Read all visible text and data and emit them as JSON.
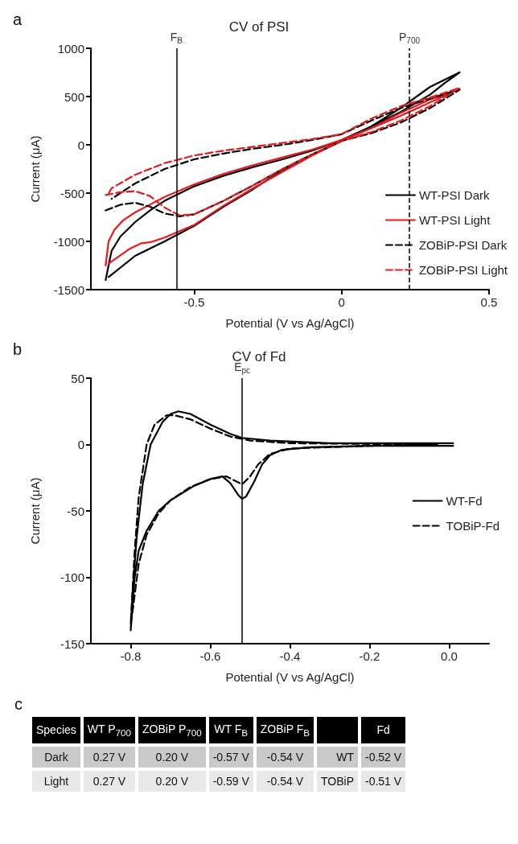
{
  "chart_data": [
    {
      "type": "line",
      "title": "CV of PSI",
      "xlabel": "Potential (V vs Ag/AgCl)",
      "ylabel": "Current (μA)",
      "annotations": [
        "a"
      ],
      "xlim": [
        -0.85,
        0.5
      ],
      "xticks": [
        -0.5,
        0,
        0.5
      ],
      "ylim": [
        -1500,
        1000
      ],
      "yticks": [
        -1500,
        -1000,
        -500,
        0,
        500,
        1000
      ],
      "grid": false,
      "legend": "bottom right",
      "ref_lines": [
        {
          "axis": "x",
          "value": -0.56,
          "label": "F$_{B}$",
          "color": "#000000"
        },
        {
          "axis": "x",
          "value": 0.23,
          "label": "P$_{700}$",
          "color": "#000000",
          "line_style": "dashed"
        }
      ],
      "series": [
        {
          "name": "WT-PSI Dark",
          "color": "#000000",
          "x": [
            -0.8,
            -0.79,
            -0.78,
            -0.75,
            -0.7,
            -0.65,
            -0.6,
            -0.5,
            -0.4,
            -0.3,
            -0.2,
            -0.1,
            0,
            0.1,
            0.2,
            0.3,
            0.4,
            0.35,
            0.3,
            0.2,
            0.1,
            0,
            -0.1,
            -0.2,
            -0.3,
            -0.4,
            -0.5,
            -0.6,
            -0.7,
            -0.79
          ],
          "values": [
            -1400,
            -1250,
            -1100,
            -950,
            -800,
            -680,
            -580,
            -430,
            -320,
            -230,
            -150,
            -60,
            50,
            190,
            380,
            600,
            750,
            640,
            520,
            340,
            190,
            40,
            -100,
            -260,
            -460,
            -640,
            -840,
            -1000,
            -1150,
            -1370
          ]
        },
        {
          "name": "WT-PSI Light",
          "color": "#e8191c",
          "x": [
            -0.8,
            -0.79,
            -0.77,
            -0.74,
            -0.7,
            -0.65,
            -0.6,
            -0.5,
            -0.4,
            -0.3,
            -0.2,
            -0.1,
            0,
            0.1,
            0.2,
            0.3,
            0.4,
            0.3,
            0.2,
            0.1,
            0,
            -0.1,
            -0.2,
            -0.3,
            -0.4,
            -0.5,
            -0.6,
            -0.65,
            -0.68,
            -0.72,
            -0.79
          ],
          "values": [
            -1250,
            -1000,
            -880,
            -780,
            -700,
            -620,
            -540,
            -410,
            -300,
            -210,
            -130,
            -50,
            50,
            170,
            330,
            470,
            580,
            440,
            300,
            170,
            40,
            -110,
            -280,
            -450,
            -630,
            -830,
            -960,
            -1010,
            -1020,
            -1080,
            -1230
          ]
        },
        {
          "name": "ZOBiP-PSI Dark",
          "color": "#000000",
          "line_style": "dashed",
          "x": [
            -0.8,
            -0.75,
            -0.7,
            -0.65,
            -0.6,
            -0.55,
            -0.5,
            -0.4,
            -0.3,
            -0.2,
            -0.1,
            0,
            0.1,
            0.2,
            0.3,
            0.4,
            0.3,
            0.2,
            0.1,
            0,
            -0.1,
            -0.2,
            -0.3,
            -0.4,
            -0.5,
            -0.6,
            -0.7,
            -0.75,
            -0.78
          ],
          "values": [
            -680,
            -620,
            -600,
            -640,
            -710,
            -740,
            -720,
            -580,
            -420,
            -250,
            -100,
            40,
            120,
            230,
            380,
            570,
            480,
            380,
            250,
            110,
            50,
            0,
            -40,
            -90,
            -150,
            -250,
            -400,
            -500,
            -560
          ]
        },
        {
          "name": "ZOBiP-PSI Light",
          "color": "#e8191c",
          "line_style": "dashed",
          "x": [
            -0.8,
            -0.75,
            -0.7,
            -0.65,
            -0.6,
            -0.55,
            -0.5,
            -0.4,
            -0.3,
            -0.2,
            -0.1,
            0,
            0.1,
            0.2,
            0.3,
            0.4,
            0.3,
            0.2,
            0.1,
            0,
            -0.1,
            -0.2,
            -0.3,
            -0.4,
            -0.5,
            -0.6,
            -0.7,
            -0.78,
            -0.79
          ],
          "values": [
            -520,
            -490,
            -480,
            -530,
            -650,
            -730,
            -720,
            -580,
            -420,
            -250,
            -100,
            40,
            130,
            250,
            400,
            590,
            490,
            400,
            270,
            110,
            60,
            20,
            -20,
            -60,
            -110,
            -190,
            -310,
            -450,
            -505
          ]
        }
      ]
    },
    {
      "type": "line",
      "title": "CV of Fd",
      "xlabel": "Potential (V vs Ag/AgCl)",
      "ylabel": "Current (μA)",
      "annotations": [
        "b"
      ],
      "xlim": [
        -0.9,
        0.1
      ],
      "xticks": [
        -0.8,
        -0.6,
        -0.4,
        -0.2,
        {
          "value": 0,
          "label": "0.0"
        }
      ],
      "ylim": [
        -150,
        50
      ],
      "yticks": [
        -150,
        -100,
        -50,
        0,
        50
      ],
      "grid": false,
      "legend": "right",
      "ref_lines": [
        {
          "axis": "x",
          "value": -0.52,
          "label": "E$_{pc}$",
          "color": "#000000"
        }
      ],
      "series": [
        {
          "name": "WT-Fd",
          "color": "#000000",
          "x": [
            0.01,
            -0.2,
            -0.35,
            -0.42,
            -0.45,
            -0.47,
            -0.49,
            -0.51,
            -0.52,
            -0.53,
            -0.55,
            -0.57,
            -0.6,
            -0.64,
            -0.7,
            -0.73,
            -0.76,
            -0.78,
            -0.79,
            -0.8,
            -0.795,
            -0.785,
            -0.77,
            -0.75,
            -0.72,
            -0.7,
            -0.68,
            -0.65,
            -0.6,
            -0.55,
            -0.52,
            -0.45,
            -0.3,
            0.01
          ],
          "values": [
            -1,
            -1,
            -2,
            -4,
            -8,
            -15,
            -28,
            -39,
            -41,
            -38,
            -29,
            -24,
            -26,
            -31,
            -42,
            -50,
            -65,
            -80,
            -100,
            -140,
            -110,
            -70,
            -30,
            0,
            17,
            23,
            25,
            23,
            15,
            8,
            5,
            3,
            1,
            1
          ]
        },
        {
          "name": "TOBiP-Fd",
          "color": "#000000",
          "line_style": "dashed",
          "x": [
            -0.03,
            -0.2,
            -0.4,
            -0.45,
            -0.48,
            -0.5,
            -0.52,
            -0.54,
            -0.56,
            -0.6,
            -0.65,
            -0.7,
            -0.73,
            -0.76,
            -0.78,
            -0.795,
            -0.8,
            -0.79,
            -0.78,
            -0.76,
            -0.74,
            -0.71,
            -0.69,
            -0.65,
            -0.6,
            -0.55,
            -0.5,
            -0.4,
            -0.05
          ],
          "values": [
            0,
            -1,
            -3,
            -7,
            -15,
            -24,
            -30,
            -27,
            -24,
            -26,
            -32,
            -42,
            -52,
            -68,
            -90,
            -125,
            -135,
            -80,
            -40,
            0,
            15,
            22,
            22,
            19,
            12,
            6,
            3,
            1,
            0
          ]
        }
      ]
    },
    {
      "type": "other",
      "annotations": [
        "c"
      ],
      "categories": [
        "Species",
        "WT P$_{700}$",
        "ZOBiP P$_{700}$",
        "WT F$_{B}$",
        "ZOBiP F$_{B}$",
        null,
        "Fd"
      ],
      "cell_labels": [
        [
          "Dark",
          "0.27 V",
          "0.20 V",
          "-0.57 V",
          "-0.54 V",
          "WT",
          "-0.52 V"
        ],
        [
          "Light",
          "0.27 V",
          "0.20 V",
          "-0.59 V",
          "-0.54 V",
          "TOBiP",
          "-0.51 V"
        ]
      ]
    }
  ]
}
